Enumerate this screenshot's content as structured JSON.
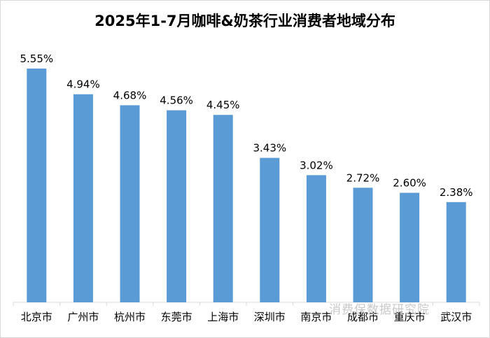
{
  "chart_data": {
    "type": "bar",
    "title": "2025年1-7月咖啡&奶茶行业消费者地域分布",
    "categories": [
      "北京市",
      "广州市",
      "杭州市",
      "东莞市",
      "上海市",
      "深圳市",
      "南京市",
      "成都市",
      "重庆市",
      "武汉市"
    ],
    "values": [
      5.55,
      4.94,
      4.68,
      4.56,
      4.45,
      3.43,
      3.02,
      2.72,
      2.6,
      2.38
    ],
    "data_labels": [
      "5.55%",
      "4.94%",
      "4.68%",
      "4.56%",
      "4.45%",
      "3.43%",
      "3.02%",
      "2.72%",
      "2.60%",
      "2.38%"
    ],
    "unit": "%",
    "ylim": [
      0,
      6
    ],
    "grid": false,
    "legend": "none",
    "bar_color": "#5b9bd5",
    "axis_color": "#d9d9d9"
  },
  "watermark": "消费保数据研究院"
}
